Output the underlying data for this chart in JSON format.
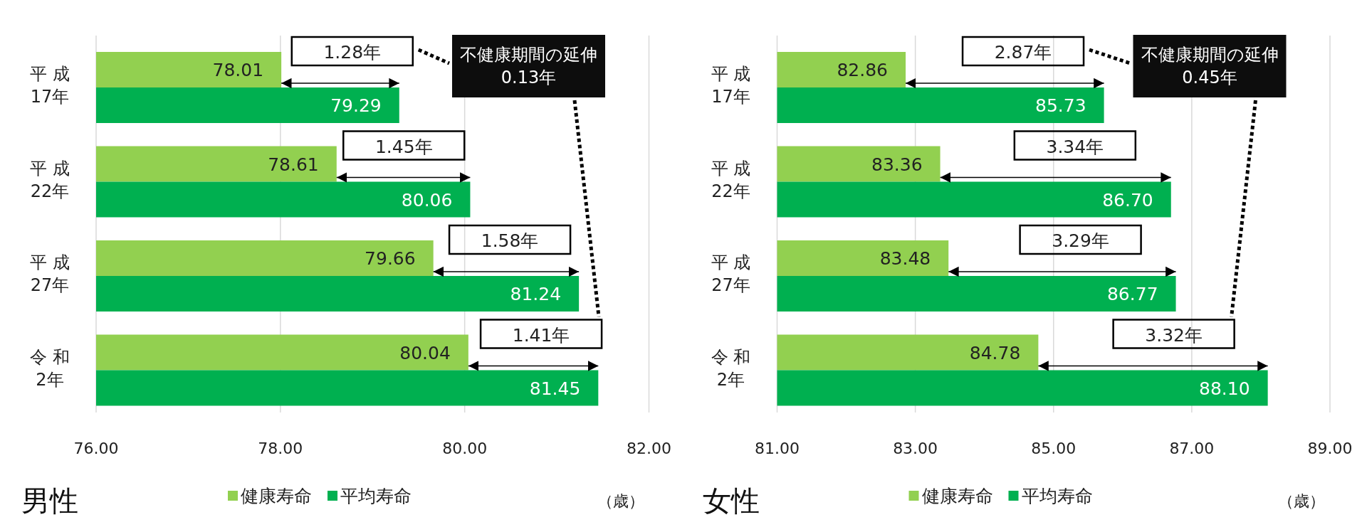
{
  "chart_data": [
    {
      "type": "bar",
      "orientation": "horizontal",
      "title": "男性",
      "xlabel": "（歳）",
      "legend": "bottom",
      "grid": "x",
      "categories": [
        "平 成\n17年",
        "平 成\n22年",
        "平 成\n27年",
        "令 和\n2年"
      ],
      "series": [
        {
          "name": "健康寿命",
          "color": "#92d050",
          "values": [
            78.01,
            78.61,
            79.66,
            80.04
          ],
          "value_labels": [
            "78.01",
            "78.61",
            "79.66",
            "80.04"
          ]
        },
        {
          "name": "平均寿命",
          "color": "#00b050",
          "values": [
            79.29,
            80.06,
            81.24,
            81.45
          ],
          "value_labels": [
            "79.29",
            "80.06",
            "81.24",
            "81.45"
          ]
        }
      ],
      "xlim": [
        76,
        82
      ],
      "xticks": [
        {
          "value": 76,
          "label": "76.00"
        },
        {
          "value": 78,
          "label": "78.00"
        },
        {
          "value": 80,
          "label": "80.00"
        },
        {
          "value": 82,
          "label": "82.00"
        }
      ],
      "annotations": [
        {
          "text": "1.28年",
          "x": 78.78,
          "y": "平 成\n17年"
        },
        {
          "text": "1.45年",
          "x": 79.34,
          "y": "平 成\n22年"
        },
        {
          "text": "1.58年",
          "x": 80.49,
          "y": "平 成\n27年"
        },
        {
          "text": "1.41年",
          "x": 80.83,
          "y": "令 和\n2年"
        },
        "不健康期間の延伸\n0.13年"
      ]
    },
    {
      "type": "bar",
      "orientation": "horizontal",
      "title": "女性",
      "xlabel": "（歳）",
      "legend": "bottom",
      "grid": "x",
      "categories": [
        "平 成\n17年",
        "平 成\n22年",
        "平 成\n27年",
        "令 和\n2年"
      ],
      "series": [
        {
          "name": "健康寿命",
          "color": "#92d050",
          "values": [
            82.86,
            83.36,
            83.48,
            84.78
          ],
          "value_labels": [
            "82.86",
            "83.36",
            "83.48",
            "84.78"
          ]
        },
        {
          "name": "平均寿命",
          "color": "#00b050",
          "values": [
            85.73,
            86.7,
            86.77,
            88.1
          ],
          "value_labels": [
            "85.73",
            "86.70",
            "86.77",
            "88.10"
          ]
        }
      ],
      "xlim": [
        81,
        89
      ],
      "xticks": [
        {
          "value": 81,
          "label": "81.00"
        },
        {
          "value": 83,
          "label": "83.00"
        },
        {
          "value": 85,
          "label": "85.00"
        },
        {
          "value": 87,
          "label": "87.00"
        },
        {
          "value": 89,
          "label": "89.00"
        }
      ],
      "annotations": [
        {
          "text": "2.87年",
          "x": 84.56,
          "y": "平 成\n17年"
        },
        {
          "text": "3.34年",
          "x": 85.31,
          "y": "平 成\n22年"
        },
        {
          "text": "3.29年",
          "x": 85.39,
          "y": "平 成\n27年"
        },
        {
          "text": "3.32年",
          "x": 86.74,
          "y": "令 和\n2年"
        },
        "不健康期間の延伸\n0.45年"
      ]
    }
  ]
}
